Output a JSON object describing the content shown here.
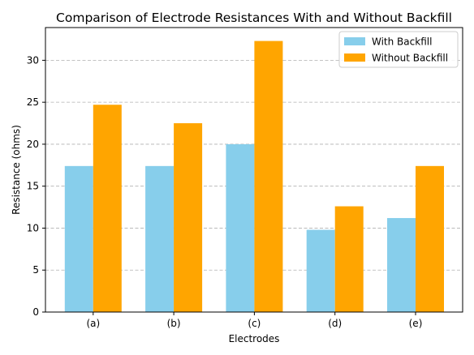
{
  "chart_data": {
    "type": "bar",
    "title": "Comparison of Electrode Resistances With and Without Backfill",
    "xlabel": "Electrodes",
    "ylabel": "Resistance (ohms)",
    "categories": [
      "(a)",
      "(b)",
      "(c)",
      "(d)",
      "(e)"
    ],
    "series": [
      {
        "name": "With Backfill",
        "color": "#87CEEB",
        "values": [
          17.4,
          17.4,
          20.0,
          9.8,
          11.2
        ]
      },
      {
        "name": "Without Backfill",
        "color": "#FFA500",
        "values": [
          24.7,
          22.5,
          32.3,
          12.6,
          17.4
        ]
      }
    ],
    "ylim": [
      0,
      33.9
    ],
    "yticks": [
      "0",
      "5",
      "10",
      "15",
      "20",
      "25",
      "30"
    ],
    "grid": "y-dashed",
    "legend": "top-right"
  }
}
